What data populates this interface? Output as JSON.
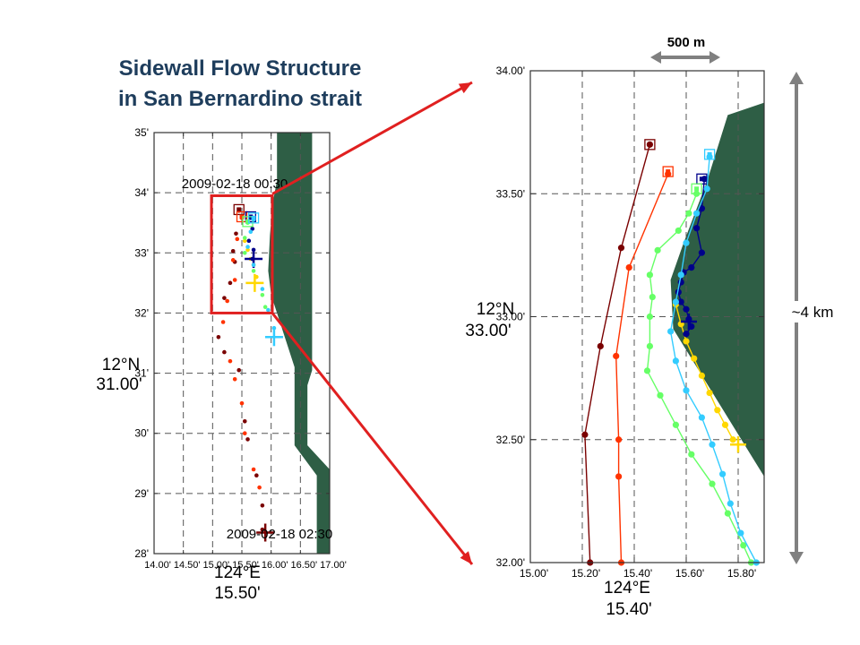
{
  "title": {
    "line1": "Sidewall Flow Structure",
    "line2": "in San Bernardino strait"
  },
  "colors": {
    "land": "#2e5e45",
    "frame": "#333333",
    "grid": "#555555",
    "zoom_box": "#e02020",
    "scale_arrow": "#808080"
  },
  "scale_bar_label": "500 m",
  "distance_label": "~4 km",
  "chart_data": [
    {
      "type": "scatter",
      "name": "overview",
      "timestamps": {
        "start": "2009-02-18 00:30",
        "end": "2009-02-18 02:30"
      },
      "y_axis": {
        "label": "12°N",
        "label_ticks": [
          "12°N",
          "31.00'"
        ],
        "ylim": [
          28,
          35
        ],
        "ticks": [
          28,
          29,
          30,
          31,
          32,
          33,
          34,
          35
        ],
        "tick_labels": [
          "28'",
          "29'",
          "30'",
          "31'",
          "32'",
          "33'",
          "34'",
          "35'"
        ]
      },
      "x_axis": {
        "label": "124°E",
        "label_ticks": [
          "124°E",
          "15.50'"
        ],
        "xlim": [
          14.0,
          17.0
        ],
        "ticks": [
          14.0,
          14.5,
          15.0,
          15.5,
          16.0,
          16.5,
          17.0
        ],
        "tick_labels": [
          "14.00'",
          "14.50'",
          "15.00'",
          "15.50'",
          "16.00'",
          "16.50'",
          "17.00'"
        ]
      },
      "grid": true,
      "land_polygon": [
        [
          16.1,
          35
        ],
        [
          16.7,
          35
        ],
        [
          16.7,
          31.05
        ],
        [
          16.62,
          30.8
        ],
        [
          16.62,
          29.8
        ],
        [
          17.0,
          29.4
        ],
        [
          17.0,
          28
        ],
        [
          16.78,
          28
        ],
        [
          16.78,
          29.3
        ],
        [
          16.4,
          29.8
        ],
        [
          16.4,
          31.1
        ],
        [
          16.0,
          32.3
        ],
        [
          15.95,
          32.7
        ],
        [
          15.98,
          33.3
        ],
        [
          16.03,
          33.85
        ],
        [
          16.1,
          34.2
        ]
      ],
      "zoom_box": {
        "x": [
          14.98,
          16.02
        ],
        "y": [
          32.0,
          33.95
        ]
      },
      "series": [
        {
          "color": "#7a0000",
          "points": [
            [
              15.45,
              33.7
            ],
            [
              15.4,
              33.32
            ],
            [
              15.35,
              33.03
            ],
            [
              15.38,
              32.85
            ],
            [
              15.3,
              32.5
            ],
            [
              15.2,
              32.25
            ],
            [
              15.1,
              31.6
            ],
            [
              15.2,
              31.35
            ],
            [
              15.45,
              31.05
            ],
            [
              15.55,
              30.2
            ],
            [
              15.6,
              29.9
            ],
            [
              15.75,
              29.3
            ],
            [
              15.85,
              28.8
            ],
            [
              15.85,
              28.4
            ]
          ],
          "start": [
            15.45,
            33.72
          ],
          "end": [
            15.9,
            28.35
          ]
        },
        {
          "color": "#ff3300",
          "points": [
            [
              15.5,
              33.58
            ],
            [
              15.42,
              33.23
            ],
            [
              15.35,
              32.88
            ],
            [
              15.38,
              32.55
            ],
            [
              15.25,
              32.2
            ],
            [
              15.18,
              31.85
            ],
            [
              15.3,
              31.2
            ],
            [
              15.38,
              30.9
            ],
            [
              15.5,
              30.5
            ],
            [
              15.55,
              30.0
            ],
            [
              15.7,
              29.4
            ],
            [
              15.8,
              29.1
            ]
          ],
          "start": [
            15.5,
            33.6
          ]
        },
        {
          "color": "#ffd700",
          "points": [
            [
              15.55,
              33.2
            ],
            [
              15.6,
              33.05
            ],
            [
              15.65,
              32.9
            ],
            [
              15.7,
              32.8
            ],
            [
              15.75,
              32.6
            ]
          ],
          "end": [
            15.72,
            32.5
          ]
        },
        {
          "color": "#00008b",
          "points": [
            [
              15.65,
              33.58
            ],
            [
              15.68,
              33.4
            ],
            [
              15.62,
              33.2
            ],
            [
              15.7,
              33.05
            ],
            [
              15.68,
              32.9
            ]
          ],
          "start": [
            15.65,
            33.6
          ],
          "end": [
            15.7,
            32.9
          ]
        },
        {
          "color": "#66ff66",
          "points": [
            [
              15.6,
              33.5
            ],
            [
              15.55,
              33.25
            ],
            [
              15.55,
              33.0
            ],
            [
              15.7,
              32.7
            ],
            [
              15.85,
              32.3
            ],
            [
              15.9,
              32.1
            ]
          ],
          "start": [
            15.6,
            33.52
          ]
        },
        {
          "color": "#33ccff",
          "points": [
            [
              15.7,
              33.55
            ],
            [
              15.65,
              33.35
            ],
            [
              15.6,
              33.1
            ],
            [
              15.7,
              32.8
            ],
            [
              15.85,
              32.4
            ],
            [
              15.95,
              32.05
            ],
            [
              16.05,
              31.75
            ]
          ],
          "start": [
            15.7,
            33.58
          ],
          "end": [
            16.05,
            31.6
          ]
        }
      ]
    },
    {
      "type": "scatter",
      "name": "zoom",
      "y_axis": {
        "label": "12°N",
        "label_ticks": [
          "12°N",
          "33.00'"
        ],
        "ylim": [
          32.0,
          34.0
        ],
        "ticks": [
          32.0,
          32.5,
          33.0,
          33.5,
          34.0
        ],
        "tick_labels": [
          "32.00'",
          "32.50'",
          "33.00'",
          "33.50'",
          "34.00'"
        ]
      },
      "x_axis": {
        "label": "124°E",
        "label_ticks": [
          "124°E",
          "15.40'"
        ],
        "xlim": [
          15.0,
          15.9
        ],
        "ticks": [
          15.0,
          15.2,
          15.4,
          15.6,
          15.8
        ],
        "tick_labels": [
          "15.00'",
          "15.20'",
          "15.40'",
          "15.60'",
          "15.80'"
        ]
      },
      "grid": true,
      "land_polygon": [
        [
          15.76,
          33.82
        ],
        [
          15.9,
          33.87
        ],
        [
          15.9,
          32.35
        ],
        [
          15.55,
          32.95
        ],
        [
          15.54,
          33.15
        ],
        [
          15.59,
          33.3
        ],
        [
          15.68,
          33.55
        ]
      ],
      "series": [
        {
          "color": "#7a0000",
          "points": [
            [
              15.46,
              33.7
            ],
            [
              15.35,
              33.28
            ],
            [
              15.27,
              32.88
            ],
            [
              15.21,
              32.52
            ],
            [
              15.23,
              32.0
            ]
          ],
          "start": [
            15.46,
            33.7
          ]
        },
        {
          "color": "#ff3300",
          "points": [
            [
              15.53,
              33.58
            ],
            [
              15.38,
              33.2
            ],
            [
              15.33,
              32.84
            ],
            [
              15.34,
              32.5
            ],
            [
              15.34,
              32.35
            ],
            [
              15.35,
              32.0
            ]
          ],
          "start": [
            15.53,
            33.59
          ]
        },
        {
          "color": "#ffd700",
          "points": [
            [
              15.56,
              33.05
            ],
            [
              15.58,
              32.97
            ],
            [
              15.6,
              32.9
            ],
            [
              15.63,
              32.83
            ],
            [
              15.66,
              32.76
            ],
            [
              15.69,
              32.69
            ],
            [
              15.72,
              32.62
            ],
            [
              15.75,
              32.56
            ],
            [
              15.78,
              32.5
            ]
          ],
          "end": [
            15.8,
            32.48
          ]
        },
        {
          "color": "#00008b",
          "points": [
            [
              15.67,
              33.56
            ],
            [
              15.66,
              33.44
            ],
            [
              15.64,
              33.36
            ],
            [
              15.66,
              33.26
            ],
            [
              15.62,
              33.2
            ],
            [
              15.59,
              33.18
            ],
            [
              15.58,
              33.14
            ],
            [
              15.57,
              33.1
            ],
            [
              15.58,
              33.06
            ],
            [
              15.6,
              33.03
            ],
            [
              15.61,
              32.99
            ],
            [
              15.62,
              32.96
            ],
            [
              15.6,
              32.93
            ]
          ],
          "start": [
            15.66,
            33.56
          ],
          "end": [
            15.61,
            32.98
          ]
        },
        {
          "color": "#66ff66",
          "points": [
            [
              15.64,
              33.5
            ],
            [
              15.61,
              33.42
            ],
            [
              15.57,
              33.35
            ],
            [
              15.49,
              33.27
            ],
            [
              15.46,
              33.17
            ],
            [
              15.47,
              33.08
            ],
            [
              15.46,
              33.0
            ],
            [
              15.46,
              32.88
            ],
            [
              15.45,
              32.78
            ],
            [
              15.5,
              32.68
            ],
            [
              15.56,
              32.56
            ],
            [
              15.62,
              32.44
            ],
            [
              15.7,
              32.32
            ],
            [
              15.76,
              32.2
            ],
            [
              15.82,
              32.07
            ],
            [
              15.85,
              32.0
            ]
          ],
          "start": [
            15.64,
            33.52
          ]
        },
        {
          "color": "#33ccff",
          "points": [
            [
              15.69,
              33.65
            ],
            [
              15.68,
              33.52
            ],
            [
              15.64,
              33.42
            ],
            [
              15.6,
              33.3
            ],
            [
              15.58,
              33.17
            ],
            [
              15.56,
              33.06
            ],
            [
              15.54,
              32.94
            ],
            [
              15.56,
              32.82
            ],
            [
              15.6,
              32.7
            ],
            [
              15.66,
              32.59
            ],
            [
              15.7,
              32.48
            ],
            [
              15.74,
              32.36
            ],
            [
              15.77,
              32.24
            ],
            [
              15.81,
              32.12
            ],
            [
              15.87,
              32.0
            ]
          ],
          "start": [
            15.69,
            33.66
          ]
        }
      ]
    }
  ]
}
